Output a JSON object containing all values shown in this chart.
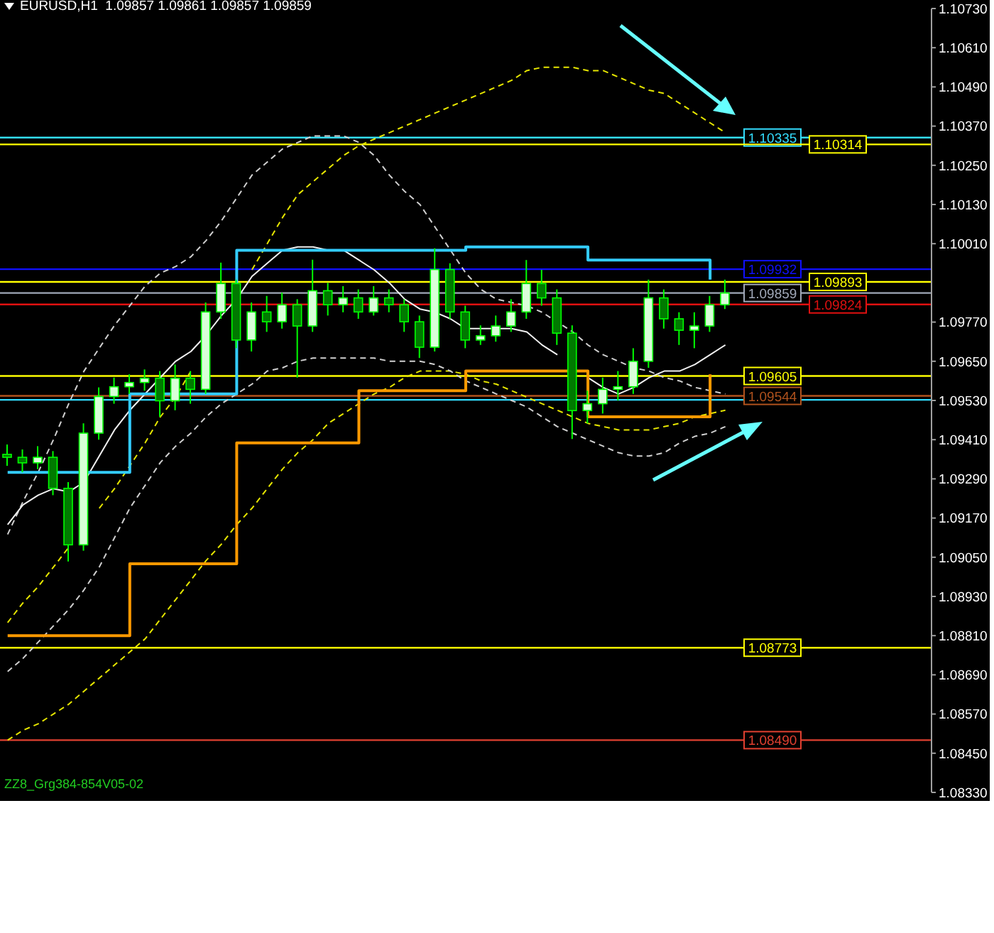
{
  "chart_data": {
    "type": "candlestick",
    "title": "EURUSD,H1  1.09857 1.09861 1.09857 1.09859",
    "annotations": [
      "ZZ8_Grg384-854V05-02"
    ],
    "categories": [
      null,
      null,
      null,
      null,
      null,
      null,
      null,
      null,
      null,
      null,
      null,
      null,
      null,
      null,
      null,
      null,
      null,
      null,
      null,
      null,
      null,
      null,
      null,
      null,
      null,
      null,
      null,
      null,
      null,
      null,
      null,
      null,
      null,
      null,
      null,
      null,
      null,
      null,
      null,
      null,
      null,
      null,
      null,
      null,
      null,
      null,
      null,
      null
    ],
    "ylim": [
      1.0833,
      1.1073
    ],
    "yticks": [
      {
        "value": 1.1073,
        "label": "1.10730"
      },
      {
        "value": 1.1061,
        "label": "1.10610"
      },
      {
        "value": 1.1049,
        "label": "1.10490"
      },
      {
        "value": 1.1037,
        "label": "1.10370"
      },
      {
        "value": 1.1025,
        "label": "1.10250"
      },
      {
        "value": 1.1013,
        "label": "1.10130"
      },
      {
        "value": 1.1001,
        "label": "1.10010"
      },
      {
        "value": 1.0977,
        "label": "1.09770"
      },
      {
        "value": 1.0965,
        "label": "1.09650"
      },
      {
        "value": 1.0953,
        "label": "1.09530"
      },
      {
        "value": 1.0941,
        "label": "1.09410"
      },
      {
        "value": 1.0929,
        "label": "1.09290"
      },
      {
        "value": 1.0917,
        "label": "1.09170"
      },
      {
        "value": 1.0905,
        "label": "1.09050"
      },
      {
        "value": 1.0893,
        "label": "1.08930"
      },
      {
        "value": 1.0881,
        "label": "1.08810"
      },
      {
        "value": 1.0869,
        "label": "1.08690"
      },
      {
        "value": 1.0857,
        "label": "1.08570"
      },
      {
        "value": 1.0845,
        "label": "1.08450"
      },
      {
        "value": 1.0833,
        "label": "1.08330"
      }
    ],
    "tick_labels": "y",
    "grid": false,
    "legend": false,
    "series": [
      {
        "type": "candlestick",
        "color": "#00ff00",
        "ohlc": [
          [
            1.09365,
            1.09395,
            1.0933,
            1.09356
          ],
          [
            1.09356,
            1.0938,
            1.0931,
            1.09339
          ],
          [
            1.09339,
            1.0939,
            1.0932,
            1.09356
          ],
          [
            1.09356,
            1.09375,
            1.0924,
            1.09261
          ],
          [
            1.09261,
            1.0928,
            1.09037,
            1.09088
          ],
          [
            1.09088,
            1.0946,
            1.0907,
            1.0943
          ],
          [
            1.0943,
            1.0957,
            1.0941,
            1.09542
          ],
          [
            1.09542,
            1.096,
            1.0952,
            1.09572
          ],
          [
            1.09572,
            1.0961,
            1.0955,
            1.09585
          ],
          [
            1.09585,
            1.09625,
            1.0956,
            1.09598
          ],
          [
            1.09598,
            1.0962,
            1.0948,
            1.09529
          ],
          [
            1.09529,
            1.0964,
            1.095,
            1.09598
          ],
          [
            1.09598,
            1.0962,
            1.0952,
            1.09564
          ],
          [
            1.09564,
            1.0983,
            1.0955,
            1.09801
          ],
          [
            1.09801,
            1.09952,
            1.0978,
            1.09888
          ],
          [
            1.09888,
            1.099,
            1.0969,
            1.09715
          ],
          [
            1.09715,
            1.0983,
            1.0968,
            1.09801
          ],
          [
            1.09801,
            1.0985,
            1.0974,
            1.09771
          ],
          [
            1.09771,
            1.0986,
            1.0975,
            1.09823
          ],
          [
            1.09823,
            1.0984,
            1.096,
            1.09758
          ],
          [
            1.09758,
            1.09961,
            1.0974,
            1.09866
          ],
          [
            1.09866,
            1.0989,
            1.0979,
            1.09823
          ],
          [
            1.09823,
            1.0988,
            1.098,
            1.09844
          ],
          [
            1.09844,
            1.0987,
            1.0978,
            1.09801
          ],
          [
            1.09801,
            1.0988,
            1.0979,
            1.09844
          ],
          [
            1.09844,
            1.0987,
            1.098,
            1.09823
          ],
          [
            1.09823,
            1.0984,
            1.0974,
            1.09771
          ],
          [
            1.09771,
            1.0979,
            1.0966,
            1.09693
          ],
          [
            1.09693,
            1.09996,
            1.0968,
            1.09931
          ],
          [
            1.09931,
            1.0995,
            1.0978,
            1.09801
          ],
          [
            1.09801,
            1.0982,
            1.0969,
            1.09715
          ],
          [
            1.09715,
            1.0976,
            1.097,
            1.09728
          ],
          [
            1.09728,
            1.0979,
            1.0971,
            1.09758
          ],
          [
            1.09758,
            1.0984,
            1.0974,
            1.09801
          ],
          [
            1.09801,
            1.0996,
            1.0978,
            1.09888
          ],
          [
            1.09888,
            1.0993,
            1.0982,
            1.09844
          ],
          [
            1.09844,
            1.0987,
            1.097,
            1.09736
          ],
          [
            1.09736,
            1.0976,
            1.09412,
            1.09499
          ],
          [
            1.09499,
            1.0956,
            1.0946,
            1.0952
          ],
          [
            1.0952,
            1.096,
            1.0949,
            1.09564
          ],
          [
            1.09564,
            1.0962,
            1.0953,
            1.09572
          ],
          [
            1.09572,
            1.0969,
            1.0955,
            1.0965
          ],
          [
            1.0965,
            1.099,
            1.0963,
            1.09844
          ],
          [
            1.09844,
            1.0987,
            1.0975,
            1.0978
          ],
          [
            1.0978,
            1.098,
            1.097,
            1.09745
          ],
          [
            1.09745,
            1.098,
            1.0969,
            1.09758
          ],
          [
            1.09758,
            1.0985,
            1.0974,
            1.09823
          ],
          [
            1.09823,
            1.099,
            1.0981,
            1.09859
          ]
        ]
      },
      {
        "type": "line",
        "color": "#e6e600",
        "line_style": "dashed",
        "values": [
          1.0885,
          1.0891,
          1.0896,
          1.0902,
          1.0908,
          null,
          1.092,
          1.0926,
          1.0933,
          1.094,
          1.0948,
          1.0954,
          1.0962,
          null,
          null,
          null,
          1.0993,
          1.1001,
          1.1009,
          1.1016,
          1.102,
          1.1024,
          1.1028,
          1.1031,
          1.1033,
          1.1035,
          1.1037,
          1.1039,
          1.1041,
          1.1043,
          1.1045,
          1.1047,
          1.1049,
          1.1051,
          1.1054,
          1.1055,
          1.1055,
          1.1055,
          1.1054,
          1.1054,
          1.1052,
          1.105,
          1.1048,
          1.1047,
          1.1044,
          1.1041,
          1.1038,
          1.1035
        ]
      },
      {
        "type": "line",
        "color": "#e6e600",
        "line_style": "dashed",
        "values": [
          1.0849,
          1.0852,
          1.0854,
          1.0857,
          1.086,
          1.0864,
          1.0868,
          1.0872,
          1.0876,
          1.088,
          1.0886,
          1.0892,
          1.0898,
          1.0904,
          1.0909,
          1.0915,
          1.092,
          1.0926,
          1.0932,
          1.0937,
          1.0941,
          1.0946,
          1.0949,
          1.0952,
          1.0955,
          1.0957,
          1.096,
          1.0962,
          1.0962,
          1.0962,
          1.0961,
          1.0959,
          1.0958,
          1.0956,
          1.0954,
          1.0952,
          1.095,
          1.0948,
          1.0946,
          1.0945,
          1.0944,
          1.0944,
          1.0944,
          1.0945,
          1.0946,
          1.0948,
          1.0949,
          1.095
        ]
      },
      {
        "type": "line",
        "color": "#d0d0d0",
        "line_style": "dashed",
        "values": [
          1.0912,
          1.0922,
          1.0931,
          1.0941,
          1.0952,
          1.0962,
          1.0969,
          1.0976,
          1.0982,
          1.0988,
          1.0992,
          1.0994,
          1.0997,
          1.1002,
          1.1008,
          1.1015,
          1.1022,
          1.1026,
          1.103,
          1.1032,
          1.1034,
          1.1034,
          1.1034,
          1.1032,
          1.1028,
          1.1022,
          1.1017,
          1.1013,
          1.1006,
          1.0999,
          1.0992,
          1.0987,
          1.0984,
          1.0983,
          1.0982,
          1.098,
          1.0977,
          1.0974,
          1.097,
          1.0967,
          1.0965,
          1.0963,
          1.0962,
          1.096,
          1.0959,
          1.0957,
          1.0956,
          1.0955
        ]
      },
      {
        "type": "line",
        "color": "#d0d0d0",
        "line_style": "dashed",
        "values": [
          1.087,
          1.0874,
          1.0879,
          1.0884,
          1.0889,
          1.0895,
          1.0902,
          1.0911,
          1.092,
          1.0927,
          1.0934,
          1.0939,
          1.0943,
          1.0948,
          1.0952,
          1.0955,
          1.0958,
          1.0962,
          1.0963,
          1.0965,
          1.0966,
          1.0966,
          1.0966,
          1.0966,
          1.0966,
          1.0965,
          1.0965,
          1.0965,
          1.0964,
          1.0962,
          1.0959,
          1.0957,
          1.0955,
          1.0953,
          1.0951,
          1.0948,
          1.0945,
          1.0943,
          1.0941,
          1.0939,
          1.0937,
          1.0936,
          1.0936,
          1.0937,
          1.094,
          1.0942,
          1.0943,
          1.0945
        ]
      },
      {
        "type": "line",
        "color": "#f0f0f0",
        "line_style": "solid",
        "values": [
          1.0915,
          1.0921,
          1.0924,
          1.0926,
          1.0925,
          1.0928,
          1.0936,
          1.0944,
          1.095,
          1.0955,
          1.096,
          1.0965,
          1.0968,
          1.0973,
          1.0979,
          1.0984,
          1.0991,
          1.0995,
          1.0999,
          1.1,
          1.1,
          1.0999,
          1.0999,
          1.0996,
          1.0993,
          1.0989,
          1.0984,
          1.0981,
          1.098,
          1.0978,
          1.0975,
          1.0975,
          1.0975,
          1.0975,
          1.0974,
          1.097,
          1.0967,
          null,
          1.096,
          1.0957,
          1.0955,
          1.0957,
          1.096,
          1.0962,
          1.0962,
          1.0964,
          1.0967,
          1.097
        ]
      },
      {
        "type": "step",
        "color": "#ff9900",
        "values": [
          1.0881,
          1.0881,
          1.0881,
          1.0881,
          1.0881,
          1.0881,
          1.0881,
          1.0881,
          1.0903,
          1.0903,
          1.0903,
          1.0903,
          1.0903,
          1.0903,
          1.0903,
          1.094,
          1.094,
          1.094,
          1.094,
          1.094,
          1.094,
          1.094,
          1.094,
          1.0956,
          1.0956,
          1.0956,
          1.0956,
          1.0956,
          1.0956,
          1.0956,
          1.0962,
          1.0962,
          1.0962,
          1.0962,
          1.0962,
          1.0962,
          1.0962,
          1.0962,
          1.0948,
          1.0948,
          1.0948,
          1.0948,
          1.0948,
          1.0948,
          1.0948,
          1.0948,
          1.0961,
          null
        ]
      },
      {
        "type": "step",
        "color": "#33ccff",
        "values": [
          1.0931,
          1.0931,
          1.0931,
          1.0931,
          1.0931,
          1.0931,
          1.0931,
          1.0931,
          1.0955,
          1.0955,
          1.0955,
          1.0955,
          1.0955,
          1.0955,
          1.0955,
          1.0999,
          1.0999,
          1.0999,
          1.0999,
          1.0999,
          1.0999,
          1.0999,
          1.0999,
          1.0999,
          1.0999,
          1.0999,
          1.0999,
          1.0999,
          1.0999,
          1.0999,
          1.1,
          1.1,
          1.1,
          1.1,
          1.1,
          1.1,
          1.1,
          1.1,
          1.0996,
          1.0996,
          1.0996,
          1.0996,
          1.0996,
          1.0996,
          1.0996,
          1.0996,
          1.099,
          null
        ]
      }
    ],
    "ref_lines": [
      {
        "axis": "y",
        "value": 1.10335,
        "label": "1.10335",
        "color": "#33ddff"
      },
      {
        "axis": "y",
        "value": 1.10314,
        "label": "1.10314",
        "color": "#ffff00"
      },
      {
        "axis": "y",
        "value": 1.09932,
        "label": "1.09932",
        "color": "#1010ff"
      },
      {
        "axis": "y",
        "value": 1.09893,
        "label": "1.09893",
        "color": "#ffff00"
      },
      {
        "axis": "y",
        "value": 1.09859,
        "label": "1.09859",
        "color": "#a0a8b8"
      },
      {
        "axis": "y",
        "value": 1.09824,
        "label": "1.09824",
        "color": "#e01010"
      },
      {
        "axis": "y",
        "value": 1.09605,
        "label": "1.09605",
        "color": "#ffff00"
      },
      {
        "axis": "y",
        "value": 1.09544,
        "label": "1.09544",
        "color": "#b0521d"
      },
      {
        "axis": "y",
        "value": 1.09532,
        "label": null,
        "color": "#33ddff"
      },
      {
        "axis": "y",
        "value": 1.08773,
        "label": "1.08773",
        "color": "#ffff00"
      },
      {
        "axis": "y",
        "value": 1.0849,
        "label": "1.08490",
        "color": "#e04030"
      }
    ]
  }
}
